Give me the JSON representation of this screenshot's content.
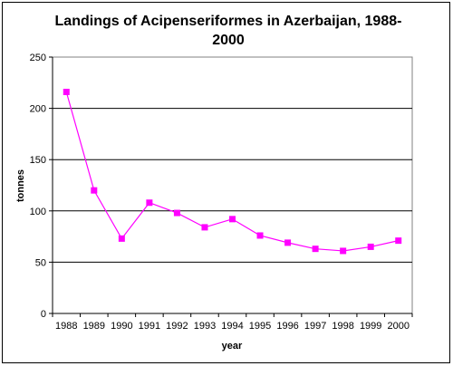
{
  "chart_data": {
    "type": "line",
    "title_lines": [
      "Landings of Acipenseriformes  in Azerbaijan, 1988-",
      "2000"
    ],
    "xlabel": "year",
    "ylabel": "tonnes",
    "ylim": [
      0,
      250
    ],
    "yticks": [
      0,
      50,
      100,
      150,
      200,
      250
    ],
    "grid": true,
    "legend": "none",
    "x": [
      "1988",
      "1989",
      "1990",
      "1991",
      "1992",
      "1993",
      "1994",
      "1995",
      "1996",
      "1997",
      "1998",
      "1999",
      "2000"
    ],
    "series": [
      {
        "values": [
          216,
          120,
          73,
          108,
          98,
          84,
          92,
          76,
          69,
          63,
          61,
          65,
          71
        ],
        "color": "#FF00FF"
      }
    ]
  }
}
